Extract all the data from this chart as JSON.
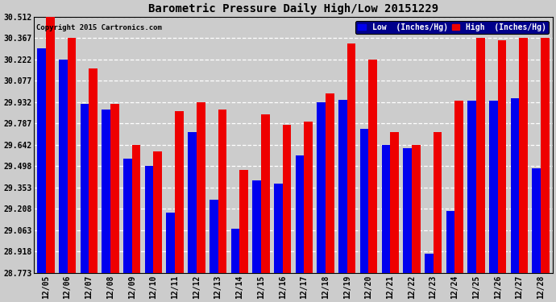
{
  "title": "Barometric Pressure Daily High/Low 20151229",
  "copyright": "Copyright 2015 Cartronics.com",
  "legend_low": "Low  (Inches/Hg)",
  "legend_high": "High  (Inches/Hg)",
  "dates": [
    "12/05",
    "12/06",
    "12/07",
    "12/08",
    "12/09",
    "12/10",
    "12/11",
    "12/12",
    "12/13",
    "12/14",
    "12/15",
    "12/16",
    "12/17",
    "12/18",
    "12/19",
    "12/20",
    "12/21",
    "12/22",
    "12/23",
    "12/24",
    "12/25",
    "12/26",
    "12/27",
    "12/28"
  ],
  "low_values": [
    30.3,
    30.22,
    29.92,
    29.88,
    29.55,
    29.5,
    29.18,
    29.73,
    29.27,
    29.07,
    29.4,
    29.38,
    29.57,
    29.93,
    29.95,
    29.75,
    29.64,
    29.62,
    28.9,
    29.19,
    29.94,
    29.94,
    29.96,
    29.48
  ],
  "high_values": [
    30.51,
    30.37,
    30.16,
    29.92,
    29.64,
    29.6,
    29.87,
    29.93,
    29.88,
    29.47,
    29.85,
    29.78,
    29.8,
    29.99,
    30.33,
    30.22,
    29.73,
    29.64,
    29.73,
    29.94,
    30.37,
    30.35,
    30.37,
    30.37
  ],
  "ymin": 28.773,
  "ymax": 30.512,
  "ytick_values": [
    28.773,
    28.918,
    29.063,
    29.208,
    29.353,
    29.498,
    29.642,
    29.787,
    29.932,
    30.077,
    30.222,
    30.367,
    30.512
  ],
  "low_color": "#0000ee",
  "high_color": "#ee0000",
  "bg_color": "#cccccc",
  "grid_color": "#ffffff",
  "bar_width": 0.4
}
